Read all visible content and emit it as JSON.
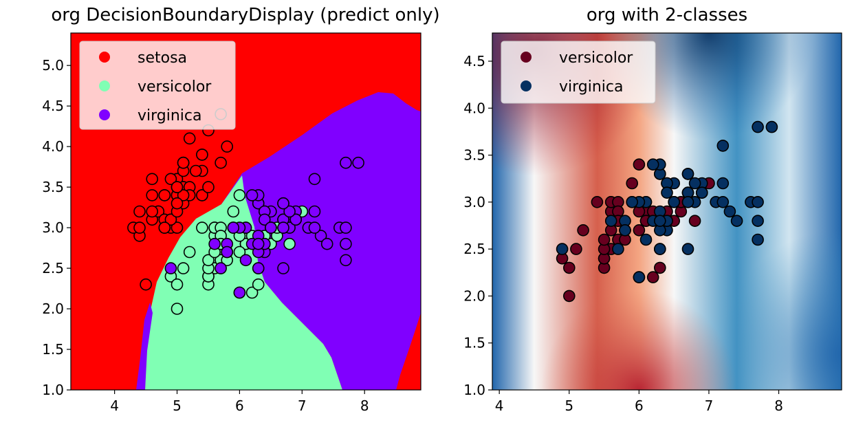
{
  "chart_data": [
    {
      "type": "scatter",
      "title": "org DecisionBoundaryDisplay (predict only)",
      "xlim": [
        3.3,
        8.9
      ],
      "ylim": [
        1.0,
        5.4
      ],
      "x_ticks": [
        4,
        5,
        6,
        7,
        8
      ],
      "y_ticks": [
        1.0,
        1.5,
        2.0,
        2.5,
        3.0,
        3.5,
        4.0,
        4.5,
        5.0
      ],
      "legend_location": "upper-left",
      "background": "decision regions (predicted class)",
      "series": [
        {
          "name": "setosa",
          "color": "#ff0000",
          "points": [
            [
              5.1,
              3.5
            ],
            [
              4.9,
              3.0
            ],
            [
              4.7,
              3.2
            ],
            [
              4.6,
              3.1
            ],
            [
              5.0,
              3.6
            ],
            [
              5.4,
              3.9
            ],
            [
              4.6,
              3.4
            ],
            [
              5.0,
              3.4
            ],
            [
              4.4,
              2.9
            ],
            [
              4.9,
              3.1
            ],
            [
              5.4,
              3.7
            ],
            [
              4.8,
              3.4
            ],
            [
              4.8,
              3.0
            ],
            [
              4.3,
              3.0
            ],
            [
              5.8,
              4.0
            ],
            [
              5.7,
              4.4
            ],
            [
              5.4,
              3.9
            ],
            [
              5.1,
              3.5
            ],
            [
              5.7,
              3.8
            ],
            [
              5.1,
              3.8
            ],
            [
              5.4,
              3.4
            ],
            [
              5.1,
              3.7
            ],
            [
              4.6,
              3.6
            ],
            [
              5.1,
              3.3
            ],
            [
              4.8,
              3.4
            ],
            [
              5.0,
              3.0
            ],
            [
              5.0,
              3.4
            ],
            [
              5.2,
              3.5
            ],
            [
              5.2,
              3.4
            ],
            [
              4.7,
              3.2
            ],
            [
              4.8,
              3.1
            ],
            [
              5.4,
              3.4
            ],
            [
              5.2,
              4.1
            ],
            [
              5.5,
              4.2
            ],
            [
              4.9,
              3.1
            ],
            [
              5.0,
              3.2
            ],
            [
              5.5,
              3.5
            ],
            [
              4.9,
              3.6
            ],
            [
              4.4,
              3.0
            ],
            [
              5.1,
              3.4
            ],
            [
              5.0,
              3.5
            ],
            [
              4.5,
              2.3
            ],
            [
              4.4,
              3.2
            ],
            [
              5.0,
              3.5
            ],
            [
              5.1,
              3.8
            ],
            [
              4.8,
              3.0
            ],
            [
              5.1,
              3.8
            ],
            [
              4.6,
              3.2
            ],
            [
              5.3,
              3.7
            ],
            [
              5.0,
              3.3
            ]
          ]
        },
        {
          "name": "versicolor",
          "color": "#80ffb4",
          "points": [
            [
              7.0,
              3.2
            ],
            [
              6.4,
              3.2
            ],
            [
              6.9,
              3.1
            ],
            [
              5.5,
              2.3
            ],
            [
              6.5,
              2.8
            ],
            [
              5.7,
              2.8
            ],
            [
              6.3,
              3.3
            ],
            [
              4.9,
              2.4
            ],
            [
              6.6,
              2.9
            ],
            [
              5.2,
              2.7
            ],
            [
              5.0,
              2.0
            ],
            [
              5.9,
              3.0
            ],
            [
              6.0,
              2.2
            ],
            [
              6.1,
              2.9
            ],
            [
              5.6,
              2.9
            ],
            [
              6.7,
              3.1
            ],
            [
              5.6,
              3.0
            ],
            [
              5.8,
              2.7
            ],
            [
              6.2,
              2.2
            ],
            [
              5.6,
              2.5
            ],
            [
              5.9,
              3.2
            ],
            [
              6.1,
              2.8
            ],
            [
              6.3,
              2.5
            ],
            [
              6.1,
              2.8
            ],
            [
              6.4,
              2.9
            ],
            [
              6.6,
              3.0
            ],
            [
              6.8,
              2.8
            ],
            [
              6.7,
              3.0
            ],
            [
              6.0,
              2.9
            ],
            [
              5.7,
              2.6
            ],
            [
              5.5,
              2.4
            ],
            [
              5.5,
              2.4
            ],
            [
              5.8,
              2.7
            ],
            [
              6.0,
              2.7
            ],
            [
              5.4,
              3.0
            ],
            [
              6.0,
              3.4
            ],
            [
              6.7,
              3.1
            ],
            [
              6.3,
              2.3
            ],
            [
              5.6,
              3.0
            ],
            [
              5.5,
              2.5
            ],
            [
              5.5,
              2.6
            ],
            [
              6.1,
              3.0
            ],
            [
              5.8,
              2.6
            ],
            [
              5.0,
              2.3
            ],
            [
              5.6,
              2.7
            ],
            [
              5.7,
              3.0
            ],
            [
              5.7,
              2.9
            ],
            [
              6.2,
              2.9
            ],
            [
              5.1,
              2.5
            ],
            [
              5.7,
              2.8
            ]
          ]
        },
        {
          "name": "virginica",
          "color": "#8000ff",
          "points": [
            [
              6.3,
              3.3
            ],
            [
              5.8,
              2.7
            ],
            [
              7.1,
              3.0
            ],
            [
              6.3,
              2.9
            ],
            [
              6.5,
              3.0
            ],
            [
              7.6,
              3.0
            ],
            [
              4.9,
              2.5
            ],
            [
              7.3,
              2.9
            ],
            [
              6.7,
              2.5
            ],
            [
              7.2,
              3.6
            ],
            [
              6.5,
              3.2
            ],
            [
              6.4,
              2.7
            ],
            [
              6.8,
              3.0
            ],
            [
              5.7,
              2.5
            ],
            [
              5.8,
              2.8
            ],
            [
              6.4,
              3.2
            ],
            [
              6.5,
              3.0
            ],
            [
              7.7,
              3.8
            ],
            [
              7.7,
              2.6
            ],
            [
              6.0,
              2.2
            ],
            [
              6.9,
              3.2
            ],
            [
              5.6,
              2.8
            ],
            [
              7.7,
              2.8
            ],
            [
              6.3,
              2.7
            ],
            [
              6.7,
              3.3
            ],
            [
              7.2,
              3.2
            ],
            [
              6.2,
              2.8
            ],
            [
              6.1,
              3.0
            ],
            [
              6.4,
              2.8
            ],
            [
              7.2,
              3.0
            ],
            [
              7.4,
              2.8
            ],
            [
              7.9,
              3.8
            ],
            [
              6.4,
              2.8
            ],
            [
              6.3,
              2.8
            ],
            [
              6.1,
              2.6
            ],
            [
              7.7,
              3.0
            ],
            [
              6.3,
              3.4
            ],
            [
              6.4,
              3.1
            ],
            [
              6.0,
              3.0
            ],
            [
              6.9,
              3.1
            ],
            [
              6.7,
              3.1
            ],
            [
              6.9,
              3.1
            ],
            [
              5.8,
              2.7
            ],
            [
              6.8,
              3.2
            ],
            [
              6.7,
              3.3
            ],
            [
              6.7,
              3.0
            ],
            [
              6.3,
              2.5
            ],
            [
              6.5,
              3.0
            ],
            [
              6.2,
              3.4
            ],
            [
              5.9,
              3.0
            ]
          ]
        }
      ]
    },
    {
      "type": "scatter",
      "title": "org with 2-classes",
      "xlim": [
        3.9,
        8.9
      ],
      "ylim": [
        1.0,
        4.8
      ],
      "x_ticks": [
        4,
        5,
        6,
        7,
        8
      ],
      "y_ticks": [
        1.0,
        1.5,
        2.0,
        2.5,
        3.0,
        3.5,
        4.0,
        4.5
      ],
      "legend_location": "upper-left",
      "background": "decision function (RdBu colormap)",
      "series": [
        {
          "name": "versicolor",
          "color": "#67001f",
          "points": [
            [
              7.0,
              3.2
            ],
            [
              6.4,
              3.2
            ],
            [
              6.9,
              3.1
            ],
            [
              5.5,
              2.3
            ],
            [
              6.5,
              2.8
            ],
            [
              5.7,
              2.8
            ],
            [
              6.3,
              3.3
            ],
            [
              4.9,
              2.4
            ],
            [
              6.6,
              2.9
            ],
            [
              5.2,
              2.7
            ],
            [
              5.0,
              2.0
            ],
            [
              5.9,
              3.0
            ],
            [
              6.0,
              2.2
            ],
            [
              6.1,
              2.9
            ],
            [
              5.6,
              2.9
            ],
            [
              6.7,
              3.1
            ],
            [
              5.6,
              3.0
            ],
            [
              5.8,
              2.7
            ],
            [
              6.2,
              2.2
            ],
            [
              5.6,
              2.5
            ],
            [
              5.9,
              3.2
            ],
            [
              6.1,
              2.8
            ],
            [
              6.3,
              2.5
            ],
            [
              6.1,
              2.8
            ],
            [
              6.4,
              2.9
            ],
            [
              6.6,
              3.0
            ],
            [
              6.8,
              2.8
            ],
            [
              6.7,
              3.0
            ],
            [
              6.0,
              2.9
            ],
            [
              5.7,
              2.6
            ],
            [
              5.5,
              2.4
            ],
            [
              5.5,
              2.4
            ],
            [
              5.8,
              2.7
            ],
            [
              6.0,
              2.7
            ],
            [
              5.4,
              3.0
            ],
            [
              6.0,
              3.4
            ],
            [
              6.7,
              3.1
            ],
            [
              6.3,
              2.3
            ],
            [
              5.6,
              3.0
            ],
            [
              5.5,
              2.5
            ],
            [
              5.5,
              2.6
            ],
            [
              6.1,
              3.0
            ],
            [
              5.8,
              2.6
            ],
            [
              5.0,
              2.3
            ],
            [
              5.6,
              2.7
            ],
            [
              5.7,
              3.0
            ],
            [
              5.7,
              2.9
            ],
            [
              6.2,
              2.9
            ],
            [
              5.1,
              2.5
            ],
            [
              5.7,
              2.8
            ]
          ]
        },
        {
          "name": "virginica",
          "color": "#053061",
          "points": [
            [
              6.3,
              3.3
            ],
            [
              5.8,
              2.7
            ],
            [
              7.1,
              3.0
            ],
            [
              6.3,
              2.9
            ],
            [
              6.5,
              3.0
            ],
            [
              7.6,
              3.0
            ],
            [
              4.9,
              2.5
            ],
            [
              7.3,
              2.9
            ],
            [
              6.7,
              2.5
            ],
            [
              7.2,
              3.6
            ],
            [
              6.5,
              3.2
            ],
            [
              6.4,
              2.7
            ],
            [
              6.8,
              3.0
            ],
            [
              5.7,
              2.5
            ],
            [
              5.8,
              2.8
            ],
            [
              6.4,
              3.2
            ],
            [
              6.5,
              3.0
            ],
            [
              7.7,
              3.8
            ],
            [
              7.7,
              2.6
            ],
            [
              6.0,
              2.2
            ],
            [
              6.9,
              3.2
            ],
            [
              5.6,
              2.8
            ],
            [
              7.7,
              2.8
            ],
            [
              6.3,
              2.7
            ],
            [
              6.7,
              3.3
            ],
            [
              7.2,
              3.2
            ],
            [
              6.2,
              2.8
            ],
            [
              6.1,
              3.0
            ],
            [
              6.4,
              2.8
            ],
            [
              7.2,
              3.0
            ],
            [
              7.4,
              2.8
            ],
            [
              7.9,
              3.8
            ],
            [
              6.4,
              2.8
            ],
            [
              6.3,
              2.8
            ],
            [
              6.1,
              2.6
            ],
            [
              7.7,
              3.0
            ],
            [
              6.3,
              3.4
            ],
            [
              6.4,
              3.1
            ],
            [
              6.0,
              3.0
            ],
            [
              6.9,
              3.1
            ],
            [
              6.7,
              3.1
            ],
            [
              6.9,
              3.1
            ],
            [
              5.8,
              2.7
            ],
            [
              6.8,
              3.2
            ],
            [
              6.7,
              3.3
            ],
            [
              6.7,
              3.0
            ],
            [
              6.3,
              2.5
            ],
            [
              6.5,
              3.0
            ],
            [
              6.2,
              3.4
            ],
            [
              5.9,
              3.0
            ]
          ]
        }
      ]
    }
  ]
}
